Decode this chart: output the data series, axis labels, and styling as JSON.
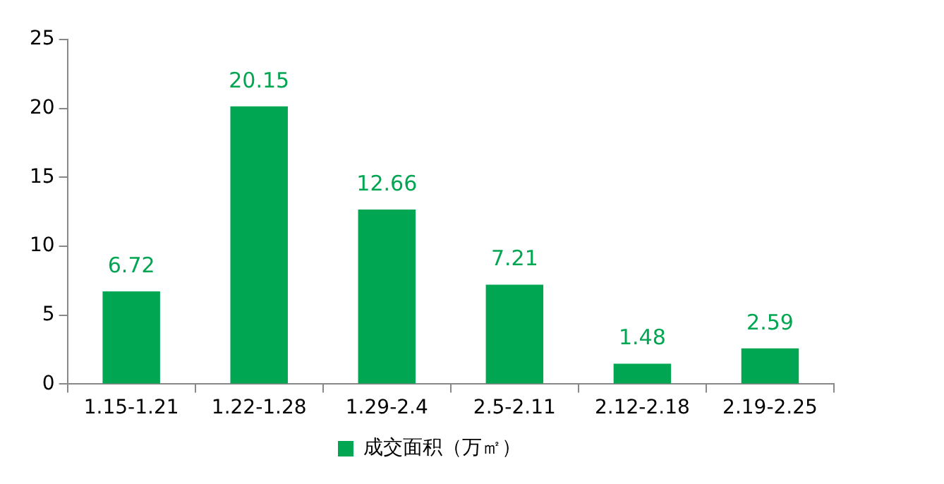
{
  "chart_data": {
    "type": "bar",
    "categories": [
      "1.15-1.21",
      "1.22-1.28",
      "1.29-2.4",
      "2.5-2.11",
      "2.12-2.18",
      "2.19-2.25"
    ],
    "series": [
      {
        "name": "成交面积（万㎡）",
        "color": "#00a651",
        "values": [
          6.72,
          20.15,
          12.66,
          7.21,
          1.48,
          2.59
        ]
      }
    ],
    "ylim": [
      0,
      25
    ],
    "yticks": [
      0,
      5,
      10,
      15,
      20,
      25
    ],
    "grid": false,
    "legend": "bottom",
    "data_labels": true
  }
}
